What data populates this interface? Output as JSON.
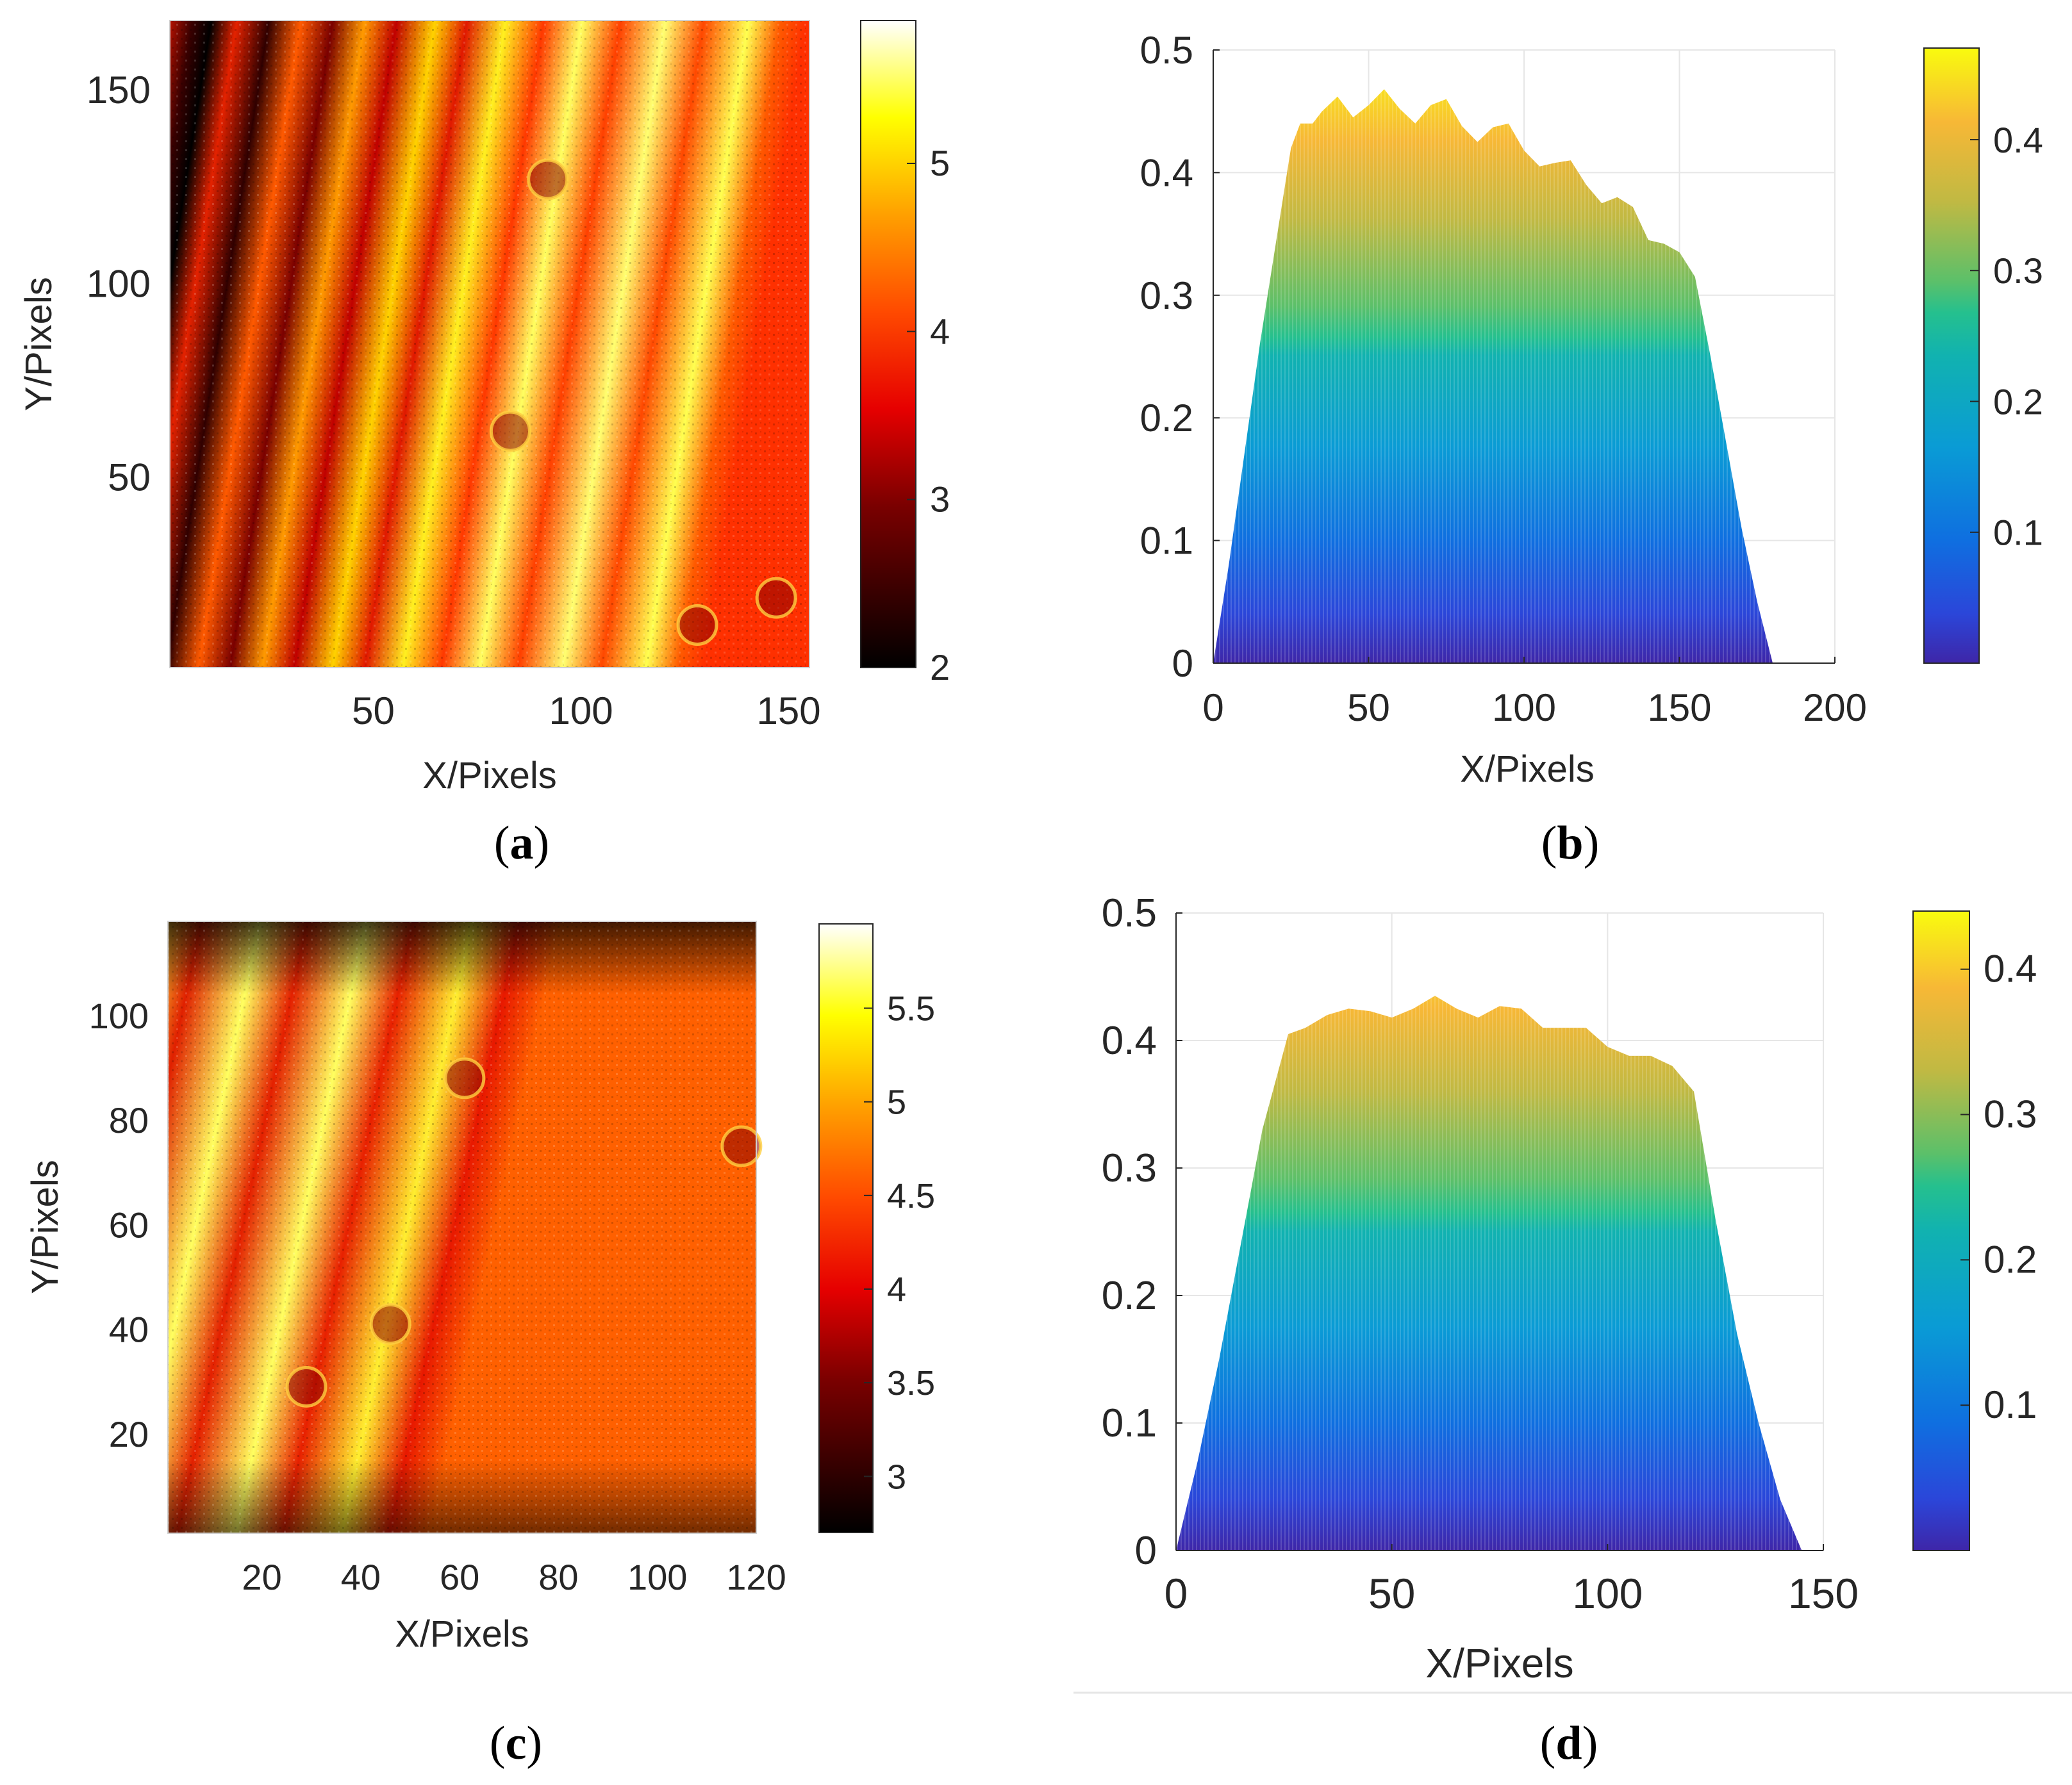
{
  "figure_captions": {
    "a": {
      "open": "(",
      "letter": "a",
      "close": ")"
    },
    "b": {
      "open": "(",
      "letter": "b",
      "close": ")"
    },
    "c": {
      "open": "(",
      "letter": "c",
      "close": ")"
    },
    "d": {
      "open": "(",
      "letter": "d",
      "close": ")"
    }
  },
  "chart_data": [
    {
      "id": "a",
      "type": "heatmap",
      "description_label": "(a)",
      "xlabel": "X/Pixels",
      "ylabel": "Y/Pixels",
      "xlim": [
        1,
        155
      ],
      "ylim": [
        1,
        168
      ],
      "xticks": [
        50,
        100,
        150
      ],
      "yticks": [
        50,
        100,
        150
      ],
      "colorbar": {
        "min": 2,
        "max": 5.85,
        "ticks": [
          2,
          3,
          4,
          5
        ],
        "colormap": "hot"
      },
      "fringes": {
        "count": 8,
        "pattern": "tilted vertical stripes",
        "min_value": 2.0,
        "max_value": 5.85
      },
      "defects": [
        {
          "x": 92,
          "y": 127
        },
        {
          "x": 128,
          "y": 12
        },
        {
          "x": 147,
          "y": 19
        },
        {
          "x": 83,
          "y": 62
        }
      ]
    },
    {
      "id": "b",
      "type": "area",
      "description_label": "(b)",
      "xlabel": "X/Pixels",
      "ylabel": "",
      "xlim": [
        0,
        200
      ],
      "ylim": [
        0,
        0.5
      ],
      "xticks": [
        0,
        50,
        100,
        150,
        200
      ],
      "yticks": [
        0,
        0.1,
        0.2,
        0.3,
        0.4,
        0.5
      ],
      "grid": true,
      "colorbar": {
        "min": 0,
        "max": 0.47,
        "ticks": [
          0.1,
          0.2,
          0.3,
          0.4
        ],
        "colormap": "parula"
      },
      "x": [
        0,
        5,
        10,
        15,
        20,
        25,
        28,
        32,
        35,
        40,
        45,
        50,
        55,
        60,
        65,
        70,
        75,
        80,
        85,
        90,
        95,
        100,
        105,
        110,
        115,
        120,
        125,
        130,
        135,
        140,
        145,
        150,
        155,
        160,
        165,
        170,
        175,
        180
      ],
      "y": [
        0,
        0.08,
        0.17,
        0.26,
        0.34,
        0.42,
        0.44,
        0.44,
        0.45,
        0.462,
        0.445,
        0.455,
        0.468,
        0.452,
        0.44,
        0.455,
        0.46,
        0.438,
        0.425,
        0.437,
        0.44,
        0.418,
        0.405,
        0.408,
        0.41,
        0.39,
        0.375,
        0.38,
        0.372,
        0.345,
        0.342,
        0.335,
        0.315,
        0.25,
        0.18,
        0.11,
        0.05,
        0
      ]
    },
    {
      "id": "c",
      "type": "heatmap",
      "description_label": "(c)",
      "xlabel": "X/Pixels",
      "ylabel": "Y/Pixels",
      "xlim": [
        1,
        120
      ],
      "ylim": [
        1,
        118
      ],
      "xticks": [
        20,
        40,
        60,
        80,
        100,
        120
      ],
      "yticks": [
        20,
        40,
        60,
        80,
        100
      ],
      "colorbar": {
        "min": 2.7,
        "max": 5.95,
        "ticks": [
          3,
          3.5,
          4,
          4.5,
          5,
          5.5
        ],
        "colormap": "hot"
      },
      "fringes": {
        "count": 5,
        "pattern": "tilted vertical stripes",
        "min_value": 2.7,
        "max_value": 5.95
      },
      "defects": [
        {
          "x": 61,
          "y": 88
        },
        {
          "x": 46,
          "y": 41
        },
        {
          "x": 29,
          "y": 29
        },
        {
          "x": 117,
          "y": 75
        }
      ]
    },
    {
      "id": "d",
      "type": "area",
      "description_label": "(d)",
      "xlabel": "X/Pixels",
      "ylabel": "",
      "xlim": [
        0,
        150
      ],
      "ylim": [
        0,
        0.5
      ],
      "xticks": [
        0,
        50,
        100,
        150
      ],
      "yticks": [
        0,
        0.1,
        0.2,
        0.3,
        0.4,
        0.5
      ],
      "grid": true,
      "colorbar": {
        "min": 0,
        "max": 0.44,
        "ticks": [
          0.1,
          0.2,
          0.3,
          0.4
        ],
        "colormap": "parula"
      },
      "x": [
        0,
        5,
        10,
        15,
        20,
        26,
        30,
        35,
        40,
        45,
        50,
        55,
        60,
        65,
        70,
        75,
        80,
        85,
        90,
        95,
        100,
        105,
        110,
        115,
        120,
        125,
        130,
        135,
        140,
        145
      ],
      "y": [
        0,
        0.07,
        0.15,
        0.24,
        0.33,
        0.405,
        0.41,
        0.42,
        0.425,
        0.423,
        0.418,
        0.425,
        0.435,
        0.425,
        0.418,
        0.427,
        0.425,
        0.41,
        0.41,
        0.41,
        0.395,
        0.388,
        0.388,
        0.38,
        0.36,
        0.26,
        0.17,
        0.1,
        0.04,
        0
      ]
    }
  ]
}
